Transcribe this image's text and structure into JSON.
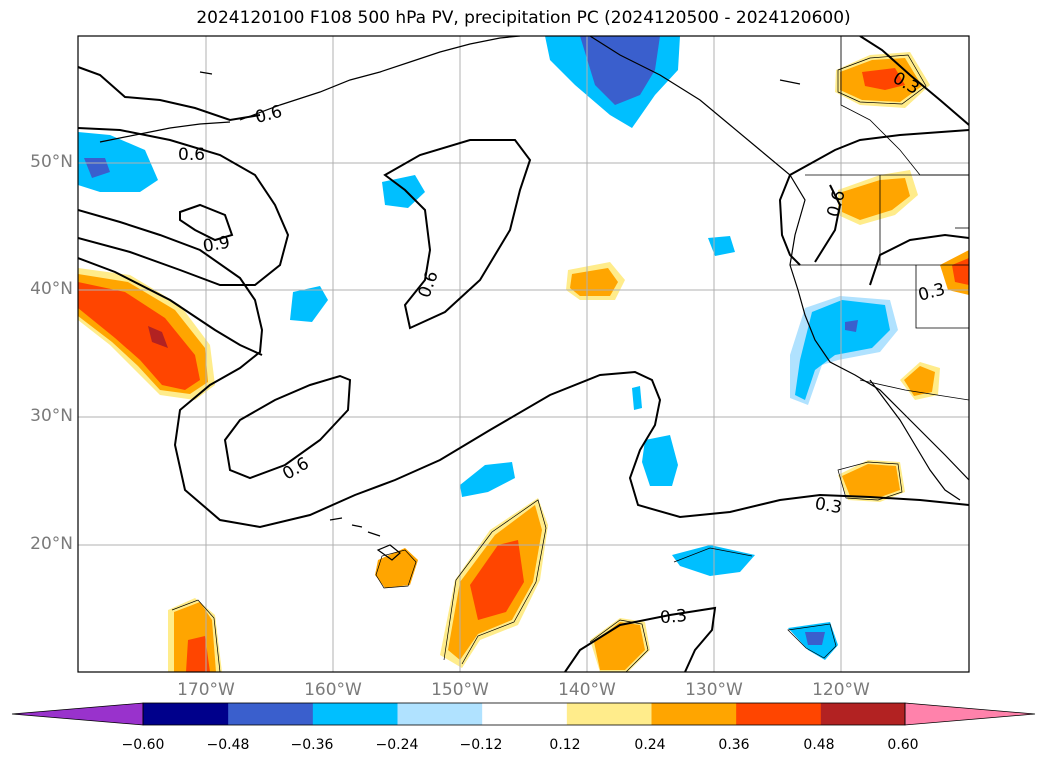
{
  "title": "2024120100 F108 500 hPa PV, precipitation PC (2024120500 - 2024120600)",
  "map": {
    "lat_labels": [
      "50°N",
      "40°N",
      "30°N",
      "20°N"
    ],
    "lon_labels": [
      "170°W",
      "160°W",
      "150°W",
      "140°W",
      "130°W",
      "120°W"
    ],
    "contour_labels": [
      "0.6",
      "0.6",
      "0.9",
      "0.6",
      "0.6",
      "0.6",
      "0.3",
      "0.3",
      "0.3",
      "0.3"
    ]
  },
  "colorbar": {
    "tick_labels": [
      "−0.60",
      "−0.48",
      "−0.36",
      "−0.24",
      "−0.12",
      "0.12",
      "0.24",
      "0.36",
      "0.48",
      "0.60"
    ],
    "colors": [
      "#9932cc",
      "#00008b",
      "#3a5fcd",
      "#00bfff",
      "#b0e2ff",
      "#ffffff",
      "#ffec8b",
      "#ffa500",
      "#ff4500",
      "#b22222",
      "#ff82ab"
    ]
  }
}
